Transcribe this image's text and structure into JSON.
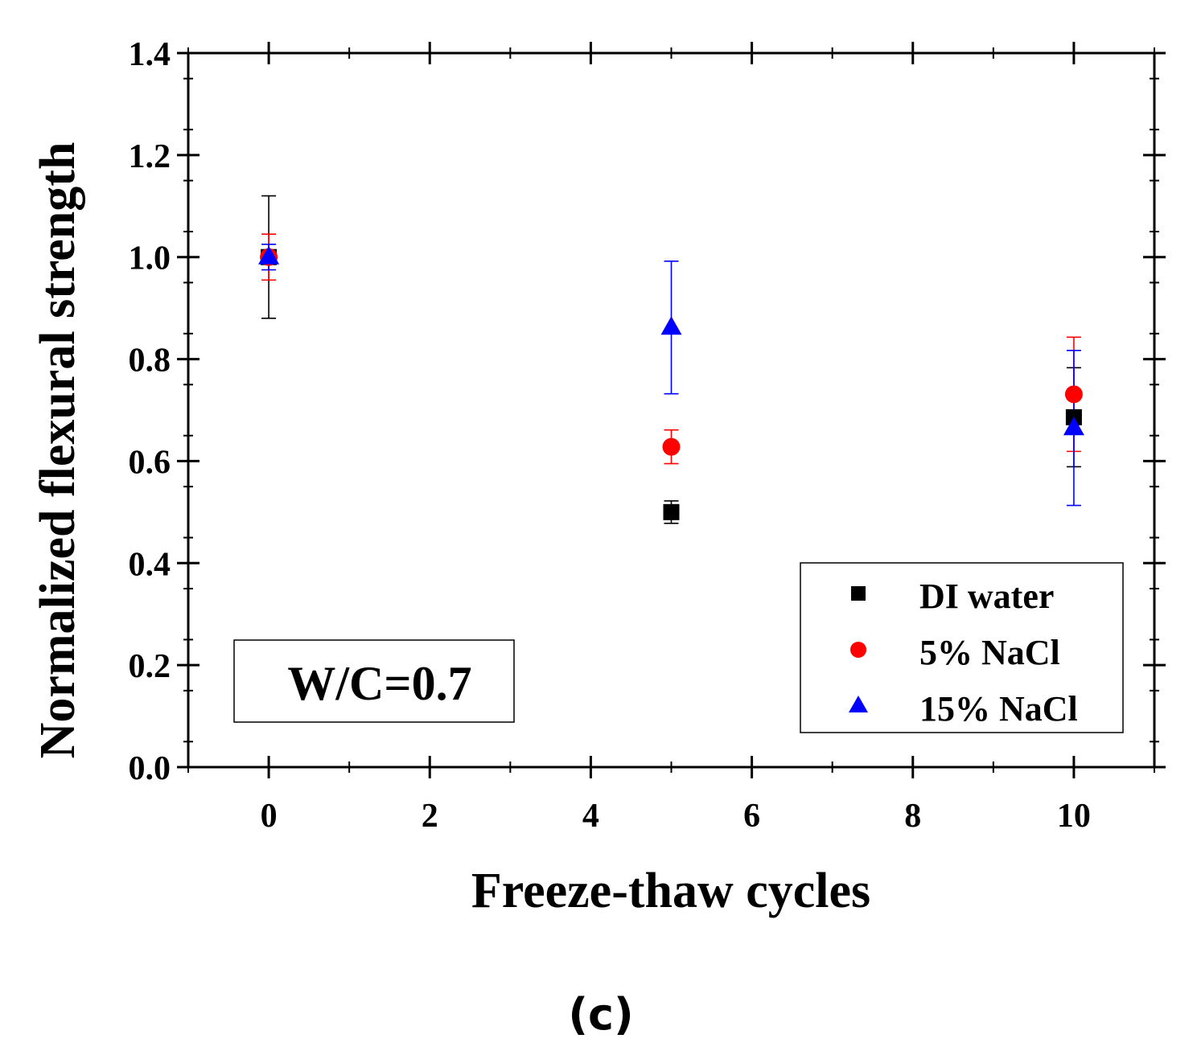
{
  "chart_data": {
    "type": "scatter",
    "xlabel": "Freeze-thaw cycles",
    "ylabel": "Normalized flexural strength",
    "xlim": [
      -1,
      11
    ],
    "ylim": [
      0.0,
      1.4
    ],
    "x_ticks": [
      0,
      2,
      4,
      6,
      8,
      10
    ],
    "x_tick_labels": [
      "0",
      "2",
      "4",
      "6",
      "8",
      "10"
    ],
    "y_ticks": [
      0.0,
      0.2,
      0.4,
      0.6,
      0.8,
      1.0,
      1.2,
      1.4
    ],
    "y_tick_labels": [
      "0.0",
      "0.2",
      "0.4",
      "0.6",
      "0.8",
      "1.0",
      "1.2",
      "1.4"
    ],
    "grid": false,
    "legend_position": "bottom-right",
    "series": [
      {
        "name": "DI water",
        "marker": "square",
        "color": "#000000",
        "x": [
          0,
          5,
          10
        ],
        "y": [
          1.0,
          0.5,
          0.686
        ],
        "error": [
          0.12,
          0.022,
          0.097
        ]
      },
      {
        "name": "5% NaCl",
        "marker": "circle",
        "color": "#ff0000",
        "x": [
          0,
          5,
          10
        ],
        "y": [
          1.0,
          0.628,
          0.731
        ],
        "error": [
          0.045,
          0.033,
          0.112
        ]
      },
      {
        "name": "15% NaCl",
        "marker": "triangle",
        "color": "#0000ff",
        "x": [
          0,
          5,
          10
        ],
        "y": [
          1.0,
          0.862,
          0.665
        ],
        "error": [
          0.025,
          0.13,
          0.152
        ]
      }
    ],
    "annotation": "W/C=0.7",
    "panel_label": "(c)"
  }
}
